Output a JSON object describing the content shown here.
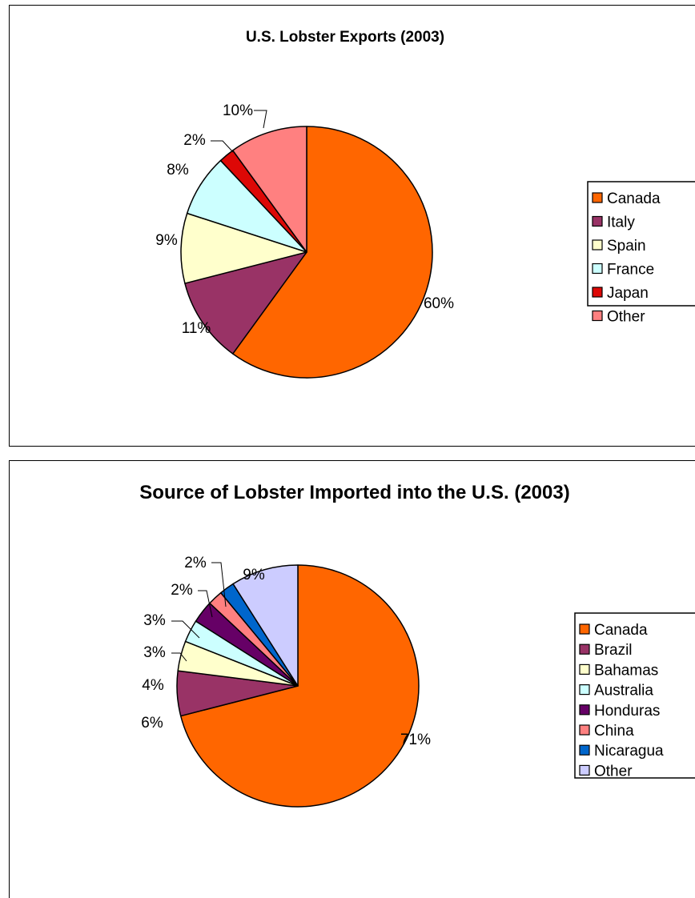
{
  "chart_data": [
    {
      "type": "pie",
      "title": "U.S. Lobster Exports (2003)",
      "categories": [
        "Canada",
        "Italy",
        "Spain",
        "France",
        "Japan",
        "Other"
      ],
      "values": [
        60,
        11,
        9,
        8,
        2,
        10
      ],
      "labels": [
        "60%",
        "11%",
        "9%",
        "8%",
        "2%",
        "10%"
      ],
      "colors": [
        "#FF6600",
        "#993366",
        "#FFFFCC",
        "#CCFFFF",
        "#DD0806",
        "#FF8080"
      ],
      "legend_position": "right"
    },
    {
      "type": "pie",
      "title": "Source of Lobster Imported into the U.S. (2003)",
      "categories": [
        "Canada",
        "Brazil",
        "Bahamas",
        "Australia",
        "Honduras",
        "China",
        "Nicaragua",
        "Other"
      ],
      "values": [
        71,
        6,
        4,
        3,
        3,
        2,
        2,
        9
      ],
      "labels": [
        "71%",
        "6%",
        "4%",
        "3%",
        "3%",
        "2%",
        "2%",
        "9%"
      ],
      "colors": [
        "#FF6600",
        "#993366",
        "#FFFFCC",
        "#CCFFFF",
        "#660066",
        "#FF8080",
        "#0066CC",
        "#CCCCFF"
      ],
      "legend_position": "right"
    }
  ]
}
